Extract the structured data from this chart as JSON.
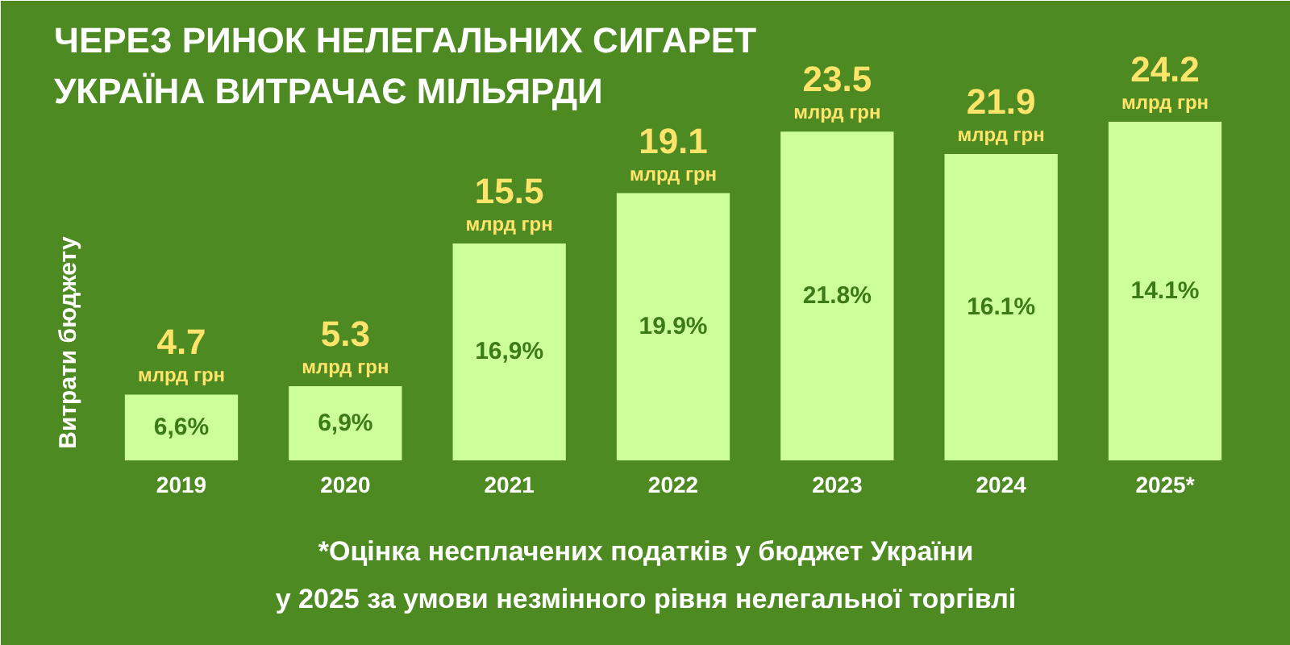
{
  "chart_data": {
    "type": "bar",
    "title": "ЧЕРЕЗ РИНОК НЕЛЕГАЛЬНИХ СИГАРЕТ\nУКРАЇНА ВИТРАЧАЄ МІЛЬЯРДИ",
    "ylabel": "Витрати бюджету",
    "categories": [
      "2019",
      "2020",
      "2021",
      "2022",
      "2023",
      "2024",
      "2025*"
    ],
    "values": [
      4.7,
      5.3,
      15.5,
      19.1,
      23.5,
      21.9,
      24.2
    ],
    "color": "#ccff99",
    "value_labels": [
      "4.7\nмлрд грн",
      "5.3\nмлрд грн",
      "15.5\nмлрд грн",
      "19.1\nмлрд грн",
      "23.5\nмлрд грн",
      "21.9\nмлрд грн",
      "24.2\nмлрд грн"
    ],
    "annotations": [
      "6,6%",
      "6,9%",
      "16,9%",
      "19.9%",
      "21.8%",
      "16.1%",
      "14.1%",
      "*Оцінка несплачених податків у бюджет України\nу 2025 за умови незмінного рівня нелегальної торгівлі"
    ],
    "grid": false
  }
}
